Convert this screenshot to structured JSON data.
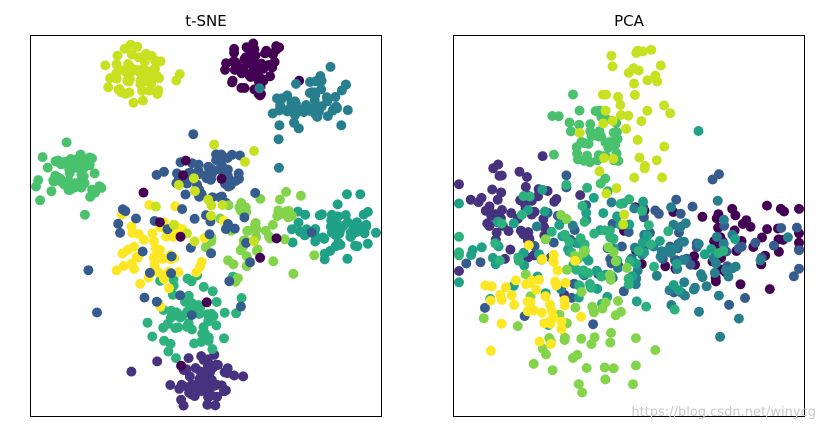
{
  "watermark": "https://blog.csdn.net/winycg",
  "palette": [
    "#440154",
    "#46327e",
    "#365c8d",
    "#277f8e",
    "#1fa187",
    "#2db27d",
    "#4ac16d",
    "#84d44b",
    "#c7e020",
    "#fde725"
  ],
  "chart_data": [
    {
      "type": "scatter",
      "title": "t-SNE",
      "xlabel": "",
      "ylabel": "",
      "grid": false,
      "legend": "none",
      "xlim": [
        0,
        100
      ],
      "ylim": [
        0,
        100
      ],
      "clusters": [
        {
          "class": 0,
          "center": [
            64,
            91
          ],
          "spread": [
            4.5,
            4
          ],
          "n": 55
        },
        {
          "class": 1,
          "center": [
            49,
            10
          ],
          "spread": [
            5,
            4
          ],
          "n": 65
        },
        {
          "class": 2,
          "center": [
            51,
            63
          ],
          "spread": [
            6,
            4
          ],
          "n": 50
        },
        {
          "class": 3,
          "center": [
            80,
            82
          ],
          "spread": [
            6,
            4
          ],
          "n": 60
        },
        {
          "class": 4,
          "center": [
            87,
            49
          ],
          "spread": [
            5,
            4
          ],
          "n": 60
        },
        {
          "class": 5,
          "center": [
            46,
            27
          ],
          "spread": [
            6,
            5
          ],
          "n": 60
        },
        {
          "class": 6,
          "center": [
            11,
            63
          ],
          "spread": [
            5,
            3.5
          ],
          "n": 55
        },
        {
          "class": 7,
          "center": [
            64,
            48
          ],
          "spread": [
            6,
            5
          ],
          "n": 50
        },
        {
          "class": 8,
          "center": [
            31,
            89
          ],
          "spread": [
            6,
            4
          ],
          "n": 55
        },
        {
          "class": 9,
          "center": [
            37,
            44
          ],
          "spread": [
            6,
            5.5
          ],
          "n": 55
        },
        {
          "class": 2,
          "center": [
            44,
            50
          ],
          "spread": [
            12,
            12
          ],
          "n": 40
        },
        {
          "class": 8,
          "center": [
            52,
            56
          ],
          "spread": [
            8,
            10
          ],
          "n": 15
        },
        {
          "class": 0,
          "center": [
            48,
            52
          ],
          "spread": [
            10,
            10
          ],
          "n": 10
        }
      ]
    },
    {
      "type": "scatter",
      "title": "PCA",
      "xlabel": "",
      "ylabel": "",
      "grid": false,
      "legend": "none",
      "xlim": [
        0,
        100
      ],
      "ylim": [
        0,
        100
      ],
      "clusters": [
        {
          "class": 0,
          "center": [
            77,
            45
          ],
          "spread": [
            12,
            6
          ],
          "n": 55
        },
        {
          "class": 1,
          "center": [
            18,
            53
          ],
          "spread": [
            10,
            7
          ],
          "n": 60
        },
        {
          "class": 2,
          "center": [
            55,
            44
          ],
          "spread": [
            22,
            8
          ],
          "n": 70
        },
        {
          "class": 3,
          "center": [
            62,
            42
          ],
          "spread": [
            15,
            8
          ],
          "n": 60
        },
        {
          "class": 4,
          "center": [
            40,
            44
          ],
          "spread": [
            18,
            9
          ],
          "n": 60
        },
        {
          "class": 5,
          "center": [
            40,
            45
          ],
          "spread": [
            16,
            9
          ],
          "n": 55
        },
        {
          "class": 6,
          "center": [
            40,
            72
          ],
          "spread": [
            5,
            6
          ],
          "n": 45
        },
        {
          "class": 7,
          "center": [
            38,
            28
          ],
          "spread": [
            12,
            12
          ],
          "n": 55
        },
        {
          "class": 8,
          "center": [
            52,
            76
          ],
          "spread": [
            6,
            12
          ],
          "n": 45
        },
        {
          "class": 9,
          "center": [
            25,
            34
          ],
          "spread": [
            7,
            7
          ],
          "n": 45
        }
      ]
    }
  ]
}
